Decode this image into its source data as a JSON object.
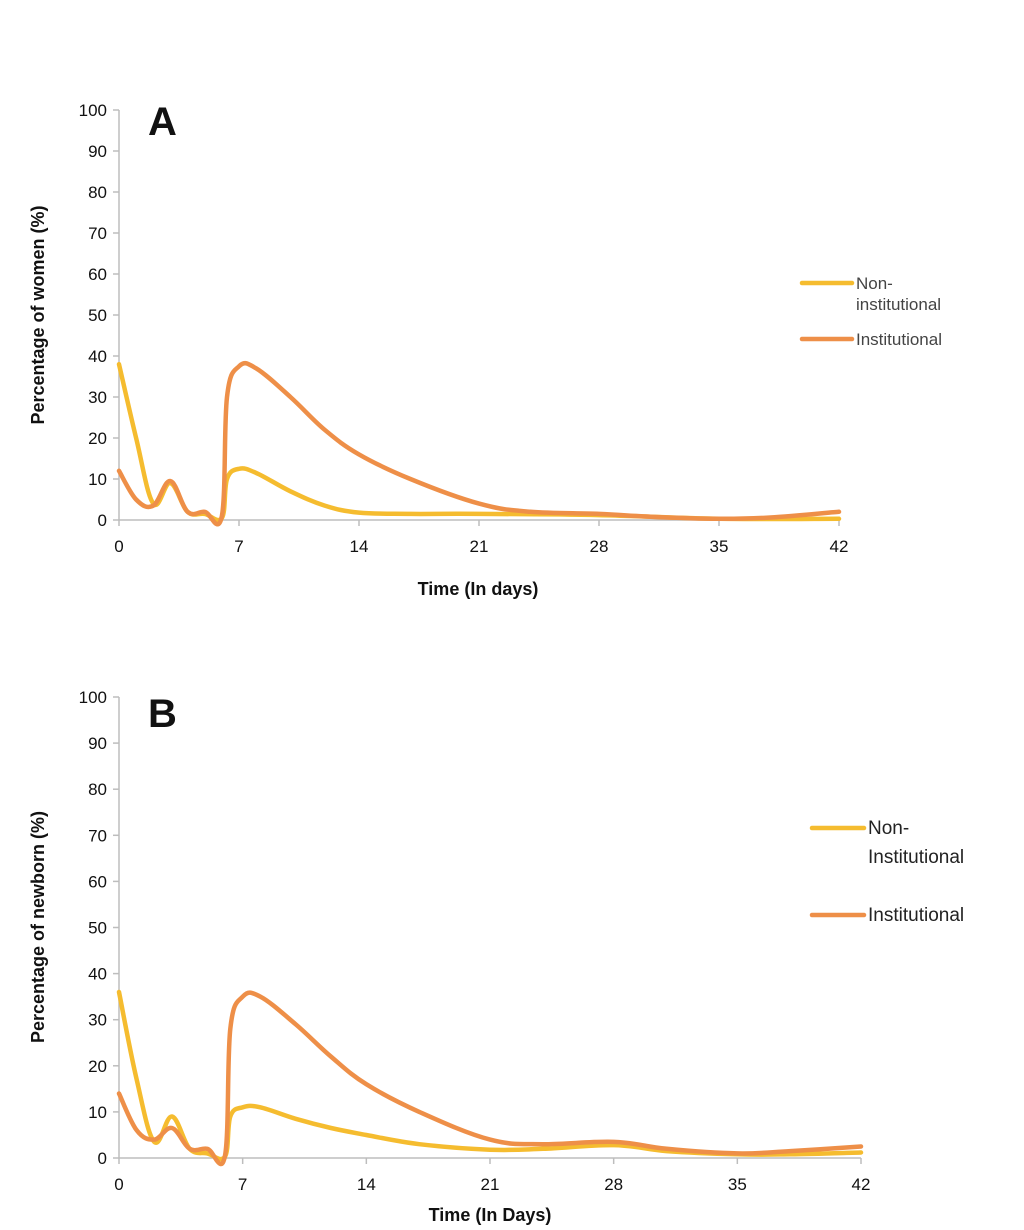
{
  "chart_data": [
    {
      "type": "line",
      "panel": "A",
      "xlabel": "Time (In days)",
      "ylabel": "Percentage of women (%)",
      "xlim": [
        0,
        42
      ],
      "ylim": [
        0,
        100
      ],
      "xticks": [
        "0",
        "7",
        "14",
        "21",
        "28",
        "35",
        "42"
      ],
      "yticks": [
        "0",
        "10",
        "20",
        "30",
        "40",
        "50",
        "60",
        "70",
        "80",
        "90",
        "100"
      ],
      "grid": false,
      "legend_position": "right",
      "series": [
        {
          "name": "Non-institutional",
          "legend_lines": [
            "Non-",
            "institutional"
          ],
          "color": "#F5BC2F",
          "points": [
            [
              0,
              38
            ],
            [
              1,
              20
            ],
            [
              2,
              4
            ],
            [
              3,
              9
            ],
            [
              4,
              2
            ],
            [
              5,
              1.5
            ],
            [
              6,
              0.5
            ],
            [
              6.3,
              10
            ],
            [
              7,
              12.5
            ],
            [
              8,
              11.5
            ],
            [
              10,
              7
            ],
            [
              12,
              3.5
            ],
            [
              14,
              1.8
            ],
            [
              17,
              1.5
            ],
            [
              21,
              1.5
            ],
            [
              28,
              1.2
            ],
            [
              35,
              0.3
            ],
            [
              42,
              0.3
            ]
          ]
        },
        {
          "name": "Institutional",
          "legend_lines": [
            "Institutional"
          ],
          "color": "#EE8F48",
          "points": [
            [
              0,
              12
            ],
            [
              1,
              5
            ],
            [
              2,
              3.5
            ],
            [
              3,
              9.5
            ],
            [
              4,
              2
            ],
            [
              5,
              2
            ],
            [
              6,
              1
            ],
            [
              6.3,
              30
            ],
            [
              7,
              37.5
            ],
            [
              8,
              37
            ],
            [
              10,
              30
            ],
            [
              12,
              22
            ],
            [
              14,
              16
            ],
            [
              17,
              10
            ],
            [
              21,
              4
            ],
            [
              24,
              2
            ],
            [
              28,
              1.5
            ],
            [
              31,
              0.8
            ],
            [
              35,
              0.3
            ],
            [
              38,
              0.6
            ],
            [
              42,
              2
            ]
          ]
        }
      ]
    },
    {
      "type": "line",
      "panel": "B",
      "xlabel": "Time (In Days)",
      "ylabel": "Percentage of newborn (%)",
      "xlim": [
        0,
        42
      ],
      "ylim": [
        0,
        100
      ],
      "xticks": [
        "0",
        "7",
        "14",
        "21",
        "28",
        "35",
        "42"
      ],
      "yticks": [
        "0",
        "10",
        "20",
        "30",
        "40",
        "50",
        "60",
        "70",
        "80",
        "90",
        "100"
      ],
      "grid": false,
      "legend_position": "right",
      "series": [
        {
          "name": "Non-Institutional",
          "legend_lines": [
            "Non-",
            "Institutional"
          ],
          "color": "#F5BC2F",
          "points": [
            [
              0,
              36
            ],
            [
              1,
              17
            ],
            [
              2,
              3.5
            ],
            [
              3,
              9
            ],
            [
              4,
              2
            ],
            [
              5,
              1
            ],
            [
              6,
              0.3
            ],
            [
              6.3,
              9
            ],
            [
              7,
              11
            ],
            [
              8,
              11
            ],
            [
              10,
              8.5
            ],
            [
              12,
              6.5
            ],
            [
              14,
              5
            ],
            [
              17,
              3
            ],
            [
              21,
              1.8
            ],
            [
              24,
              2
            ],
            [
              28,
              2.8
            ],
            [
              31,
              1.5
            ],
            [
              35,
              0.8
            ],
            [
              38,
              0.8
            ],
            [
              42,
              1.2
            ]
          ]
        },
        {
          "name": "Institutional",
          "legend_lines": [
            "Institutional"
          ],
          "color": "#EE8F48",
          "points": [
            [
              0,
              14
            ],
            [
              1,
              6
            ],
            [
              2,
              4
            ],
            [
              3,
              6.5
            ],
            [
              4,
              2
            ],
            [
              5,
              2
            ],
            [
              6,
              0.5
            ],
            [
              6.3,
              28
            ],
            [
              7,
              35
            ],
            [
              8,
              35
            ],
            [
              10,
              29
            ],
            [
              12,
              22
            ],
            [
              14,
              16
            ],
            [
              17,
              10
            ],
            [
              21,
              4
            ],
            [
              24,
              3
            ],
            [
              28,
              3.5
            ],
            [
              31,
              2
            ],
            [
              35,
              1
            ],
            [
              38,
              1.5
            ],
            [
              42,
              2.5
            ]
          ]
        }
      ]
    }
  ]
}
